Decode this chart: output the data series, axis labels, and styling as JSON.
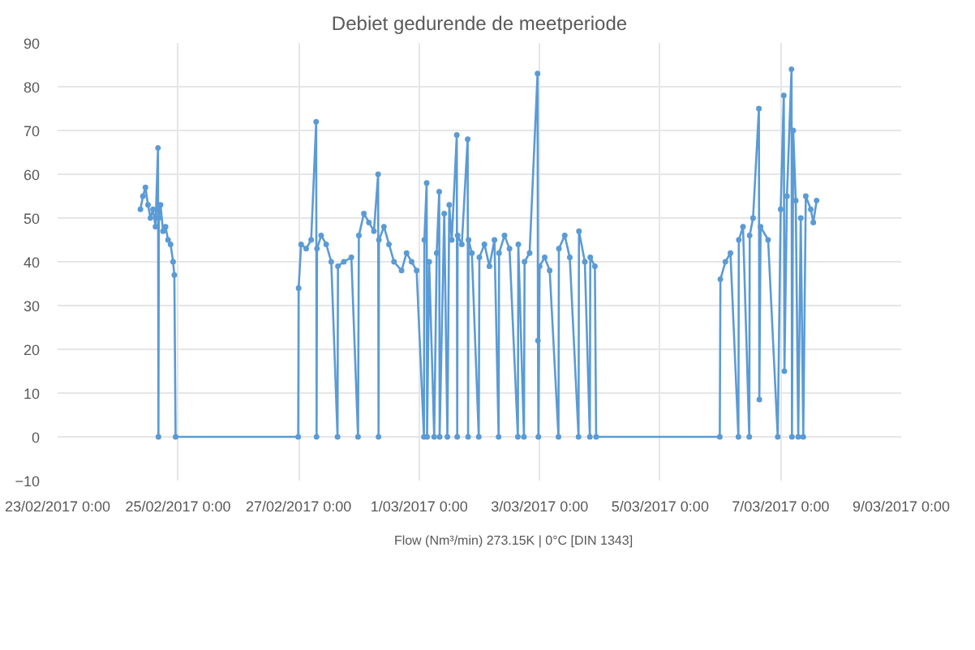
{
  "chart_data": {
    "type": "line",
    "title": "Debiet gedurende de meetperiode",
    "x": [
      "2017-02-24T09:00",
      "2017-02-24T10:00",
      "2017-02-24T11:00",
      "2017-02-24T12:00",
      "2017-02-24T13:00",
      "2017-02-24T14:00",
      "2017-02-24T15:00",
      "2017-02-24T16:00",
      "2017-02-24T16:10",
      "2017-02-24T16:20",
      "2017-02-24T17:00",
      "2017-02-24T18:00",
      "2017-02-24T19:00",
      "2017-02-24T20:00",
      "2017-02-24T21:00",
      "2017-02-24T22:00",
      "2017-02-24T22:30",
      "2017-02-24T23:00",
      "2017-02-26T23:50",
      "2017-02-27T00:00",
      "2017-02-27T01:00",
      "2017-02-27T03:00",
      "2017-02-27T05:00",
      "2017-02-27T07:00",
      "2017-02-27T07:10",
      "2017-02-27T07:20",
      "2017-02-27T09:00",
      "2017-02-27T11:00",
      "2017-02-27T13:00",
      "2017-02-27T15:30",
      "2017-02-27T15:40",
      "2017-02-27T18:00",
      "2017-02-27T21:00",
      "2017-02-27T23:40",
      "2017-02-28T00:00",
      "2017-02-28T02:00",
      "2017-02-28T04:00",
      "2017-02-28T06:00",
      "2017-02-28T07:40",
      "2017-02-28T07:50",
      "2017-02-28T08:00",
      "2017-02-28T10:00",
      "2017-02-28T12:00",
      "2017-02-28T14:00",
      "2017-02-28T17:00",
      "2017-02-28T19:00",
      "2017-02-28T21:00",
      "2017-02-28T23:00",
      "2017-03-01T01:55",
      "2017-03-01T02:05",
      "2017-03-01T03:00",
      "2017-03-01T03:10",
      "2017-03-01T04:00",
      "2017-03-01T06:00",
      "2017-03-01T07:00",
      "2017-03-01T08:00",
      "2017-03-01T08:10",
      "2017-03-01T10:00",
      "2017-03-01T11:15",
      "2017-03-01T12:00",
      "2017-03-01T13:00",
      "2017-03-01T15:00",
      "2017-03-01T15:10",
      "2017-03-01T15:20",
      "2017-03-01T17:00",
      "2017-03-01T19:20",
      "2017-03-01T19:30",
      "2017-03-01T19:40",
      "2017-03-01T21:00",
      "2017-03-01T23:45",
      "2017-03-02T00:00",
      "2017-03-02T02:00",
      "2017-03-02T04:00",
      "2017-03-02T06:00",
      "2017-03-02T07:40",
      "2017-03-02T07:50",
      "2017-03-02T10:00",
      "2017-03-02T12:00",
      "2017-03-02T15:20",
      "2017-03-02T15:30",
      "2017-03-02T17:45",
      "2017-03-02T18:00",
      "2017-03-02T20:00",
      "2017-03-02T23:10",
      "2017-03-02T23:20",
      "2017-03-02T23:30",
      "2017-03-03T00:00",
      "2017-03-03T02:00",
      "2017-03-03T04:00",
      "2017-03-03T07:30",
      "2017-03-03T07:40",
      "2017-03-03T10:00",
      "2017-03-03T12:00",
      "2017-03-03T15:30",
      "2017-03-03T15:40",
      "2017-03-03T18:00",
      "2017-03-03T20:00",
      "2017-03-03T20:10",
      "2017-03-03T22:00",
      "2017-03-03T22:30",
      "2017-03-05T23:45",
      "2017-03-06T00:00",
      "2017-03-06T02:00",
      "2017-03-06T04:00",
      "2017-03-06T07:10",
      "2017-03-06T07:20",
      "2017-03-06T09:00",
      "2017-03-06T11:30",
      "2017-03-06T11:40",
      "2017-03-06T13:00",
      "2017-03-06T15:20",
      "2017-03-06T15:30",
      "2017-03-06T16:00",
      "2017-03-06T19:00",
      "2017-03-06T22:50",
      "2017-03-07T00:00",
      "2017-03-07T01:15",
      "2017-03-07T01:30",
      "2017-03-07T02:30",
      "2017-03-07T04:20",
      "2017-03-07T04:30",
      "2017-03-07T05:00",
      "2017-03-07T06:00",
      "2017-03-07T07:00",
      "2017-03-07T08:00",
      "2017-03-07T09:00",
      "2017-03-07T10:00",
      "2017-03-07T12:00",
      "2017-03-07T13:00",
      "2017-03-07T14:20"
    ],
    "series": [
      {
        "name": "Flow (Nm³/min) 273.15K | 0°C [DIN 1343]",
        "color": "#5b9bd5",
        "values": [
          52,
          55,
          57,
          53,
          50,
          52,
          48,
          66,
          0,
          50,
          53,
          47,
          48,
          45,
          44,
          40,
          37,
          0,
          0,
          34,
          44,
          43,
          45,
          72,
          0,
          43,
          46,
          44,
          40,
          0,
          39,
          40,
          41,
          0,
          46,
          51,
          49,
          47,
          60,
          0,
          45,
          48,
          44,
          40,
          38,
          42,
          40,
          38,
          0,
          45,
          58,
          0,
          40,
          0,
          42,
          56,
          0,
          51,
          0,
          53,
          45,
          69,
          0,
          46,
          44,
          68,
          0,
          45,
          42,
          0,
          41,
          44,
          39,
          45,
          0,
          42,
          46,
          43,
          0,
          44,
          0,
          40,
          42,
          83,
          22,
          0,
          39,
          41,
          38,
          0,
          43,
          46,
          41,
          0,
          47,
          40,
          0,
          41,
          39,
          0,
          0,
          36,
          40,
          42,
          0,
          45,
          48,
          0,
          46,
          50,
          75,
          8.5,
          48,
          45,
          0,
          52,
          78,
          15,
          55,
          84,
          0,
          70,
          54,
          0,
          50,
          0,
          55,
          52,
          49,
          54
        ]
      }
    ],
    "xlim": [
      "2017-02-23",
      "2017-03-09"
    ],
    "xticks": [
      {
        "value": "2017-02-23",
        "label": "23/02/2017 0:00"
      },
      {
        "value": "2017-02-25",
        "label": "25/02/2017 0:00"
      },
      {
        "value": "2017-02-27",
        "label": "27/02/2017 0:00"
      },
      {
        "value": "2017-03-01",
        "label": "1/03/2017 0:00"
      },
      {
        "value": "2017-03-03",
        "label": "3/03/2017 0:00"
      },
      {
        "value": "2017-03-05",
        "label": "5/03/2017 0:00"
      },
      {
        "value": "2017-03-07",
        "label": "7/03/2017 0:00"
      },
      {
        "value": "2017-03-09",
        "label": "9/03/2017 0:00"
      }
    ],
    "ylim": [
      -10,
      90
    ],
    "yticks": [
      -10,
      0,
      10,
      20,
      30,
      40,
      50,
      60,
      70,
      80,
      90
    ],
    "grid": true,
    "legend": "bottom",
    "marker": "circle",
    "line_style": "solid"
  }
}
